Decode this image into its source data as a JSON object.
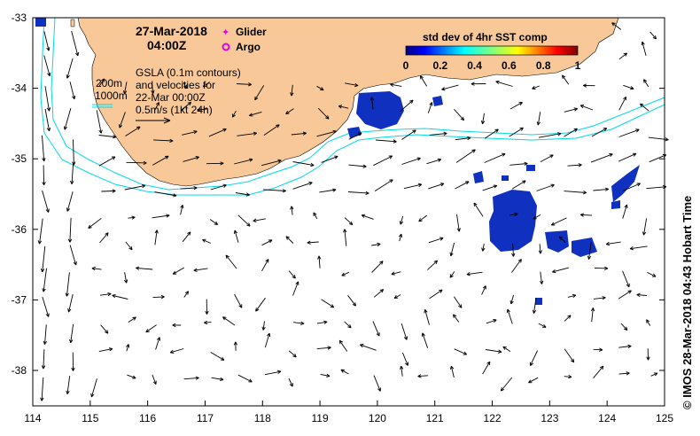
{
  "header": {
    "date": "27-Mar-2018",
    "time": "04:00Z"
  },
  "legend": {
    "glider": "Glider",
    "argo": "Argo",
    "glider_color": "#e000e0",
    "argo_color": "#e000e0"
  },
  "notes": {
    "depth_200": "200m",
    "depth_1000": "1000m",
    "gsla_line1": "GSLA (0.1m contours)",
    "gsla_line2": "and velocities for",
    "gsla_line3": "22-Mar 00:00Z",
    "gsla_line4": "0.5m/s (1kt 24h)"
  },
  "colorbar": {
    "title": "std dev of 4hr SST comp",
    "ticks": [
      "0",
      "0.2",
      "0.4",
      "0.6",
      "0.8",
      "1"
    ],
    "colors": [
      "#00007f",
      "#0000ff",
      "#007fff",
      "#00ffff",
      "#7fff7f",
      "#ffff00",
      "#ff7f00",
      "#ff0000",
      "#7f0000"
    ]
  },
  "axes": {
    "x_ticks": [
      "114",
      "115",
      "116",
      "117",
      "118",
      "119",
      "120",
      "121",
      "122",
      "123",
      "124",
      "125"
    ],
    "y_ticks": [
      "-33",
      "-34",
      "-35",
      "-36",
      "-37",
      "-38"
    ],
    "lon_range": [
      114,
      125
    ],
    "lat_range": [
      -38.5,
      -33
    ]
  },
  "credit": "© IMOS 28-Mar-2018 04:43 Hobart Time",
  "colors": {
    "land": "#f8c898",
    "isobath": "#00d8e8",
    "sst": "#1030c0"
  }
}
